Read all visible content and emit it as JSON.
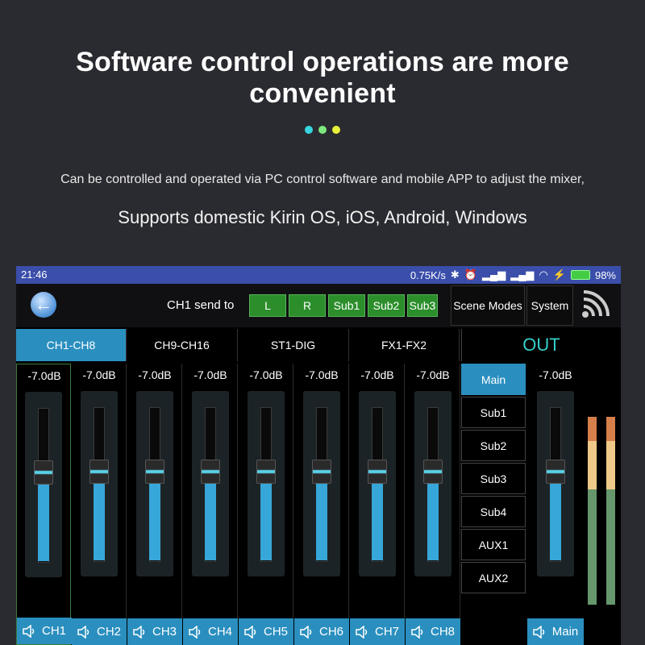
{
  "promo": {
    "headline": "Software control operations are more convenient",
    "dot_colors": [
      "#36d6e0",
      "#7ee87e",
      "#e8f03a"
    ],
    "desc_line1": "Can be controlled and operated via PC control software and mobile APP to adjust the mixer,",
    "desc_line2": "Supports domestic Kirin OS, iOS, Android, Windows"
  },
  "status_bar": {
    "time": "21:46",
    "net_speed": "0.75K/s",
    "battery": "98%"
  },
  "toolbar": {
    "send_label": "CH1 send to",
    "send_buttons": [
      "L",
      "R",
      "Sub1",
      "Sub2",
      "Sub3"
    ],
    "scene_modes": "Scene Modes",
    "system": "System"
  },
  "tabs": [
    {
      "label": "CH1-CH8",
      "active": true
    },
    {
      "label": "CH9-CH16",
      "active": false
    },
    {
      "label": "ST1-DIG",
      "active": false
    },
    {
      "label": "FX1-FX2",
      "active": false
    }
  ],
  "channels": [
    {
      "label": "CH1",
      "db": "-7.0dB",
      "level": 0.7
    },
    {
      "label": "CH2",
      "db": "-7.0dB",
      "level": 0.7
    },
    {
      "label": "CH3",
      "db": "-7.0dB",
      "level": 0.7
    },
    {
      "label": "CH4",
      "db": "-7.0dB",
      "level": 0.7
    },
    {
      "label": "CH5",
      "db": "-7.0dB",
      "level": 0.7
    },
    {
      "label": "CH6",
      "db": "-7.0dB",
      "level": 0.7
    },
    {
      "label": "CH7",
      "db": "-7.0dB",
      "level": 0.7
    },
    {
      "label": "CH8",
      "db": "-7.0dB",
      "level": 0.7
    }
  ],
  "out": {
    "title": "OUT",
    "menu": [
      {
        "label": "Main",
        "active": true
      },
      {
        "label": "Sub1",
        "active": false
      },
      {
        "label": "Sub2",
        "active": false
      },
      {
        "label": "Sub3",
        "active": false
      },
      {
        "label": "Sub4",
        "active": false
      },
      {
        "label": "AUX1",
        "active": false
      },
      {
        "label": "AUX2",
        "active": false
      }
    ],
    "main_db": "-7.0dB",
    "main_label": "Main",
    "main_level": 0.7
  },
  "colors": {
    "accent": "#2a8fbf",
    "send_green": "#2b8e2b",
    "status_bar": "#3a4eaa",
    "out_title": "#35d0c9"
  }
}
